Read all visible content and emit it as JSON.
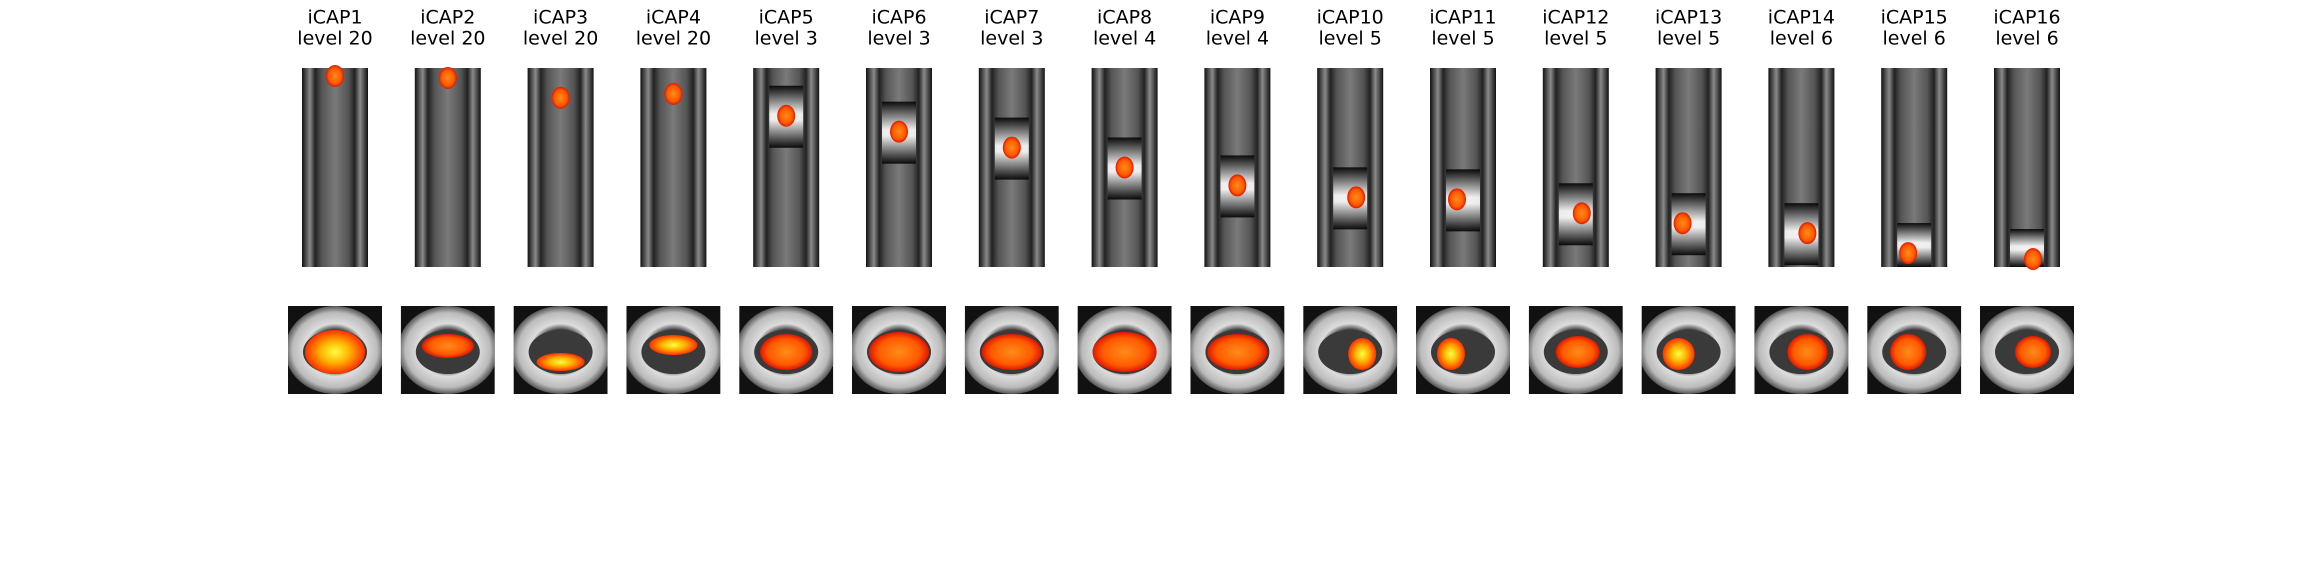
{
  "panels": [
    {
      "name": "iCAP1",
      "level": "level 20"
    },
    {
      "name": "iCAP2",
      "level": "level 20"
    },
    {
      "name": "iCAP3",
      "level": "level 20"
    },
    {
      "name": "iCAP4",
      "level": "level 20"
    },
    {
      "name": "iCAP5",
      "level": "level 3"
    },
    {
      "name": "iCAP6",
      "level": "level 3"
    },
    {
      "name": "iCAP7",
      "level": "level 3"
    },
    {
      "name": "iCAP8",
      "level": "level 4"
    },
    {
      "name": "iCAP9",
      "level": "level 4"
    },
    {
      "name": "iCAP10",
      "level": "level 5"
    },
    {
      "name": "iCAP11",
      "level": "level 5"
    },
    {
      "name": "iCAP12",
      "level": "level 5"
    },
    {
      "name": "iCAP13",
      "level": "level 5"
    },
    {
      "name": "iCAP14",
      "level": "level 6"
    },
    {
      "name": "iCAP15",
      "level": "level 6"
    },
    {
      "name": "iCAP16",
      "level": "level 6"
    }
  ]
}
